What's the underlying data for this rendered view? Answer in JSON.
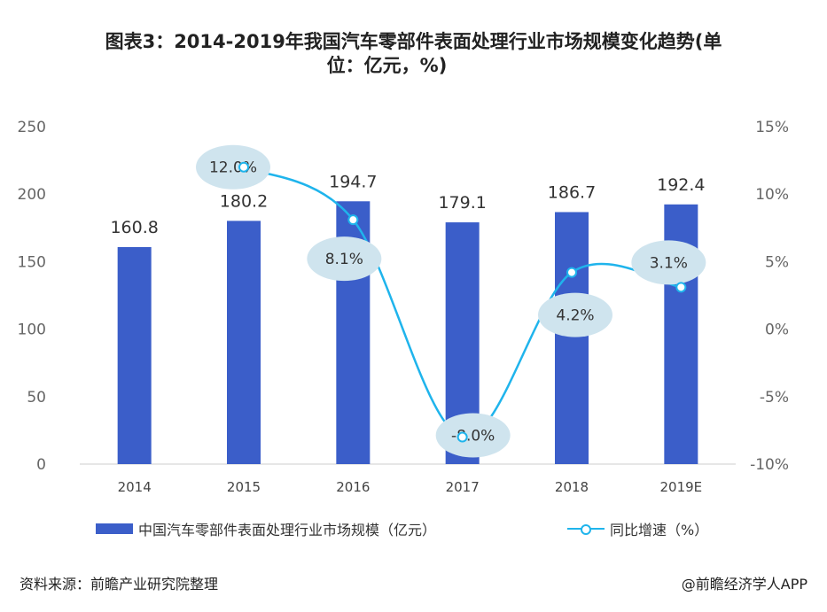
{
  "title_line1": "图表3：2014-2019年我国汽车零部件表面处理行业市场规模变化趋势(单",
  "title_line2": "位：亿元，%)",
  "source": "资料来源：前瞻产业研究院整理",
  "brand": "@前瞻经济学人APP",
  "colors": {
    "bar": "#3b5ec9",
    "line": "#1fb4ec",
    "bubble": "#cfe4ee",
    "axis": "#666666"
  },
  "chart_data": {
    "type": "bar",
    "categories": [
      "2014",
      "2015",
      "2016",
      "2017",
      "2018",
      "2019E"
    ],
    "series": [
      {
        "name": "中国汽车零部件表面处理行业市场规模（亿元）",
        "type": "bar",
        "axis": "left",
        "values": [
          160.8,
          180.2,
          194.7,
          179.1,
          186.7,
          192.4
        ]
      },
      {
        "name": "同比增速（%）",
        "type": "line",
        "axis": "right",
        "values": [
          null,
          12.0,
          8.1,
          -8.0,
          4.2,
          3.1
        ]
      }
    ],
    "bar_labels": [
      "160.8",
      "180.2",
      "194.7",
      "179.1",
      "186.7",
      "192.4"
    ],
    "line_labels": [
      "",
      "12.0%",
      "8.1%",
      "-8.0%",
      "4.2%",
      "3.1%"
    ],
    "y_left": {
      "ticks": [
        "0",
        "50",
        "100",
        "150",
        "200",
        "250"
      ],
      "ylim": [
        0,
        250
      ]
    },
    "y_right": {
      "ticks": [
        "-10%",
        "-5%",
        "0%",
        "5%",
        "10%",
        "15%"
      ],
      "ylim": [
        -10,
        15
      ]
    },
    "legend": "bottom",
    "grid": false
  }
}
